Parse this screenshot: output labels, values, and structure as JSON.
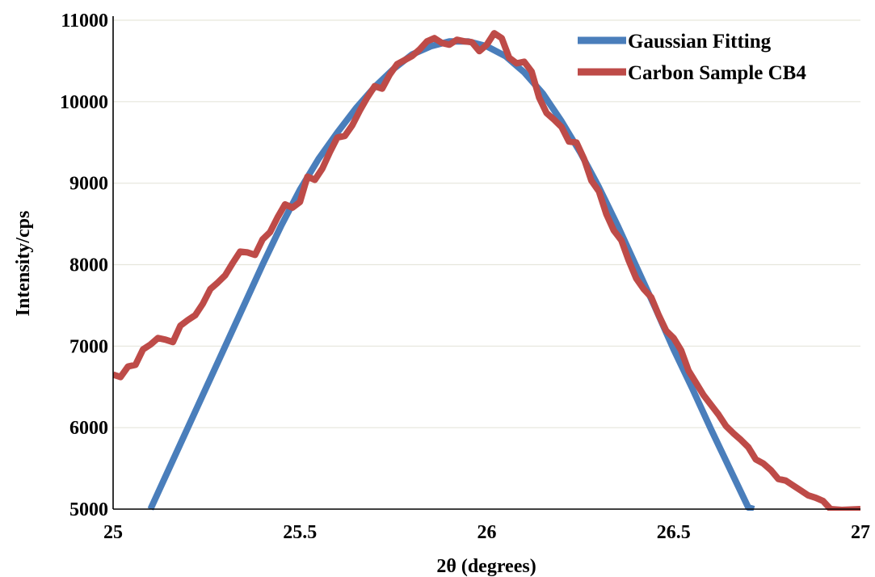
{
  "chart_data": {
    "type": "line",
    "title": "",
    "xlabel": "2θ (degrees)",
    "ylabel": "Intensity/cps",
    "xlim": [
      25,
      27
    ],
    "ylim": [
      5000,
      11000
    ],
    "x_ticks": [
      "25",
      "25.5",
      "26",
      "26.5",
      "27"
    ],
    "y_ticks": [
      "5000",
      "6000",
      "7000",
      "8000",
      "9000",
      "10000",
      "11000"
    ],
    "grid": "horizontal",
    "legend_position": "top-right",
    "series": [
      {
        "name": "Gaussian Fitting",
        "color": "#4a7ebb",
        "points": [
          [
            25.1,
            5000
          ],
          [
            25.15,
            5500
          ],
          [
            25.2,
            6000
          ],
          [
            25.25,
            6500
          ],
          [
            25.3,
            7000
          ],
          [
            25.35,
            7500
          ],
          [
            25.4,
            8000
          ],
          [
            25.45,
            8480
          ],
          [
            25.5,
            8920
          ],
          [
            25.55,
            9300
          ],
          [
            25.6,
            9620
          ],
          [
            25.65,
            9920
          ],
          [
            25.7,
            10180
          ],
          [
            25.75,
            10400
          ],
          [
            25.8,
            10580
          ],
          [
            25.85,
            10680
          ],
          [
            25.9,
            10740
          ],
          [
            25.95,
            10740
          ],
          [
            26.0,
            10680
          ],
          [
            26.05,
            10560
          ],
          [
            26.1,
            10360
          ],
          [
            26.15,
            10100
          ],
          [
            26.2,
            9760
          ],
          [
            26.25,
            9380
          ],
          [
            26.3,
            8950
          ],
          [
            26.35,
            8480
          ],
          [
            26.4,
            7980
          ],
          [
            26.45,
            7480
          ],
          [
            26.5,
            6960
          ],
          [
            26.55,
            6480
          ],
          [
            26.6,
            5980
          ],
          [
            26.65,
            5500
          ],
          [
            26.7,
            5020
          ],
          [
            26.715,
            5000
          ]
        ]
      },
      {
        "name": "Carbon Sample CB4",
        "color": "#be4b48",
        "points": [
          [
            25.0,
            6650
          ],
          [
            25.02,
            6620
          ],
          [
            25.04,
            6750
          ],
          [
            25.06,
            6770
          ],
          [
            25.08,
            6960
          ],
          [
            25.1,
            7020
          ],
          [
            25.12,
            7100
          ],
          [
            25.14,
            7080
          ],
          [
            25.16,
            7050
          ],
          [
            25.18,
            7250
          ],
          [
            25.2,
            7320
          ],
          [
            25.22,
            7380
          ],
          [
            25.24,
            7520
          ],
          [
            25.26,
            7700
          ],
          [
            25.28,
            7780
          ],
          [
            25.3,
            7870
          ],
          [
            25.32,
            8020
          ],
          [
            25.34,
            8160
          ],
          [
            25.36,
            8150
          ],
          [
            25.38,
            8120
          ],
          [
            25.4,
            8310
          ],
          [
            25.42,
            8400
          ],
          [
            25.44,
            8580
          ],
          [
            25.46,
            8740
          ],
          [
            25.48,
            8700
          ],
          [
            25.5,
            8770
          ],
          [
            25.52,
            9080
          ],
          [
            25.54,
            9040
          ],
          [
            25.56,
            9180
          ],
          [
            25.58,
            9380
          ],
          [
            25.6,
            9560
          ],
          [
            25.62,
            9580
          ],
          [
            25.64,
            9710
          ],
          [
            25.66,
            9890
          ],
          [
            25.68,
            10050
          ],
          [
            25.7,
            10190
          ],
          [
            25.72,
            10160
          ],
          [
            25.74,
            10330
          ],
          [
            25.76,
            10460
          ],
          [
            25.78,
            10510
          ],
          [
            25.8,
            10560
          ],
          [
            25.82,
            10640
          ],
          [
            25.84,
            10740
          ],
          [
            25.86,
            10780
          ],
          [
            25.88,
            10720
          ],
          [
            25.9,
            10700
          ],
          [
            25.92,
            10760
          ],
          [
            25.94,
            10740
          ],
          [
            25.96,
            10730
          ],
          [
            25.98,
            10620
          ],
          [
            26.0,
            10700
          ],
          [
            26.02,
            10840
          ],
          [
            26.04,
            10780
          ],
          [
            26.06,
            10540
          ],
          [
            26.08,
            10470
          ],
          [
            26.1,
            10490
          ],
          [
            26.12,
            10370
          ],
          [
            26.14,
            10050
          ],
          [
            26.16,
            9860
          ],
          [
            26.18,
            9780
          ],
          [
            26.2,
            9690
          ],
          [
            26.22,
            9510
          ],
          [
            26.24,
            9500
          ],
          [
            26.26,
            9300
          ],
          [
            26.28,
            9030
          ],
          [
            26.3,
            8900
          ],
          [
            26.32,
            8620
          ],
          [
            26.34,
            8420
          ],
          [
            26.36,
            8300
          ],
          [
            26.38,
            8050
          ],
          [
            26.4,
            7830
          ],
          [
            26.42,
            7700
          ],
          [
            26.44,
            7600
          ],
          [
            26.46,
            7380
          ],
          [
            26.48,
            7190
          ],
          [
            26.5,
            7100
          ],
          [
            26.52,
            6950
          ],
          [
            26.54,
            6700
          ],
          [
            26.56,
            6550
          ],
          [
            26.58,
            6400
          ],
          [
            26.6,
            6280
          ],
          [
            26.62,
            6160
          ],
          [
            26.64,
            6020
          ],
          [
            26.66,
            5930
          ],
          [
            26.68,
            5850
          ],
          [
            26.7,
            5760
          ],
          [
            26.72,
            5610
          ],
          [
            26.74,
            5560
          ],
          [
            26.76,
            5480
          ],
          [
            26.78,
            5370
          ],
          [
            26.8,
            5350
          ],
          [
            26.82,
            5290
          ],
          [
            26.84,
            5230
          ],
          [
            26.86,
            5170
          ],
          [
            26.88,
            5140
          ],
          [
            26.9,
            5100
          ],
          [
            26.92,
            5000
          ],
          [
            26.95,
            4990
          ],
          [
            27.0,
            5000
          ]
        ]
      }
    ]
  }
}
